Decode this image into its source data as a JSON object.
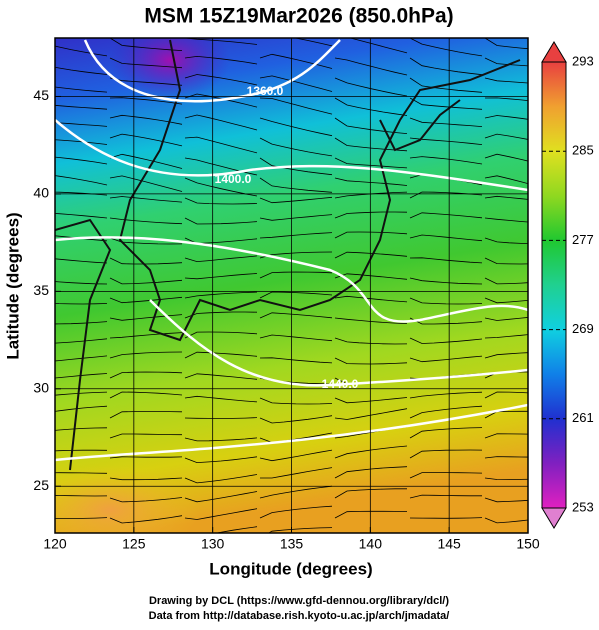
{
  "title": "MSM 15Z19Mar2026 (850.0hPa)",
  "map": {
    "xlabel": "Longitude (degrees)",
    "ylabel": "Latitude  (degrees)",
    "xlim": [
      120,
      150
    ],
    "ylim": [
      22.6,
      48
    ],
    "xticks": [
      120,
      125,
      130,
      135,
      140,
      145,
      150
    ],
    "yticks": [
      25,
      30,
      35,
      40,
      45
    ],
    "contour_labels": [
      "1360.0",
      "1400.0",
      "1440.0"
    ]
  },
  "colorbar": {
    "range": [
      253,
      293
    ],
    "ticks": [
      253,
      261,
      269,
      277,
      285,
      293
    ]
  },
  "footer": [
    "Drawing by DCL (https://www.gfd-dennou.org/library/dcl/)",
    "Data from http://database.rish.kyoto-u.ac.jp/arch/jmadata/"
  ]
}
